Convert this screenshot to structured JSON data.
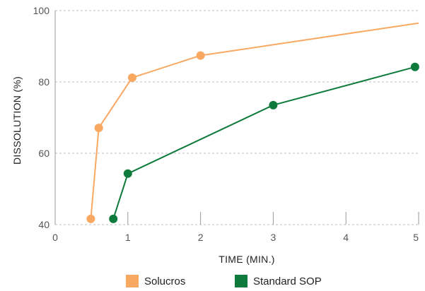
{
  "chart_data": {
    "type": "line",
    "title": "",
    "xlabel": "TIME (MIN.)",
    "ylabel": "DISSOLUTION (%)",
    "xlim": [
      0,
      5
    ],
    "ylim": [
      40,
      100
    ],
    "x_ticks": [
      0,
      1,
      2,
      3,
      4,
      5
    ],
    "y_ticks": [
      40,
      60,
      80,
      100
    ],
    "grid": "horizontal dashed",
    "legend_position": "bottom",
    "series": [
      {
        "name": "Solucros",
        "color": "#F9A862",
        "x": [
          0.49,
          0.6,
          1.06,
          2.0,
          5.0
        ],
        "y": [
          41.6,
          67.1,
          81.2,
          87.4,
          96.5
        ],
        "markers": [
          true,
          true,
          true,
          true,
          false
        ]
      },
      {
        "name": "Standard SOP",
        "color": "#0E7A3B",
        "x": [
          0.8,
          1.0,
          3.0,
          4.95,
          5.0
        ],
        "y": [
          41.6,
          54.3,
          73.5,
          84.2,
          84.4
        ],
        "markers": [
          true,
          true,
          true,
          true,
          false
        ]
      }
    ]
  }
}
